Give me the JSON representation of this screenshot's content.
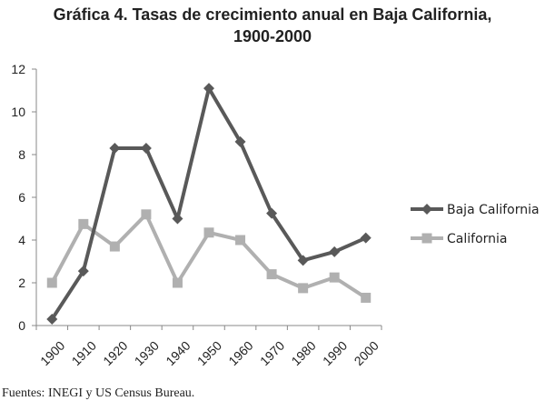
{
  "chart_data": {
    "type": "line",
    "title": "Gráfica 4. Tasas de crecimiento anual en Baja California,",
    "title_line2": "1900-2000",
    "xlabel": "",
    "ylabel": "",
    "x": [
      "1900",
      "1910",
      "1920",
      "1930",
      "1940",
      "1950",
      "1960",
      "1970",
      "1980",
      "1990",
      "2000"
    ],
    "ylim": [
      0,
      12
    ],
    "yticks": [
      "0",
      "2",
      "4",
      "6",
      "8",
      "10",
      "12"
    ],
    "grid": false,
    "legend_position": "right",
    "series": [
      {
        "name": "Baja California",
        "values": [
          0.3,
          2.55,
          8.3,
          8.3,
          5.0,
          11.1,
          8.6,
          5.25,
          3.05,
          3.45,
          4.1
        ],
        "color": "#595959",
        "marker": "diamond"
      },
      {
        "name": "California",
        "values": [
          2.0,
          4.75,
          3.7,
          5.2,
          2.0,
          4.35,
          4.0,
          2.4,
          1.75,
          2.25,
          1.3
        ],
        "color": "#b0b0b0",
        "marker": "square"
      }
    ]
  },
  "source_note": "Fuentes: INEGI y US Census Bureau."
}
